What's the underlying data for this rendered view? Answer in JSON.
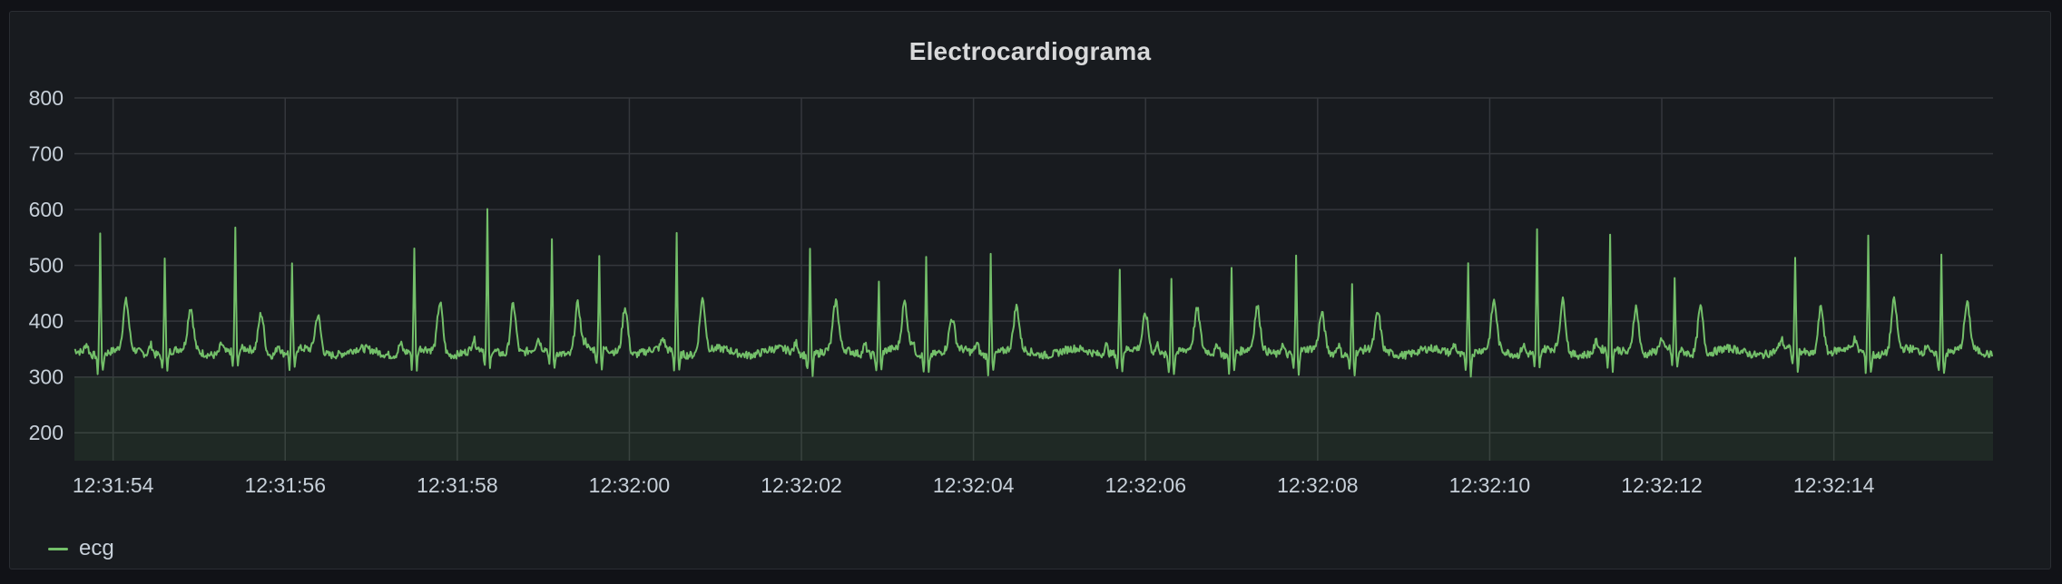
{
  "panel": {
    "title": "Electrocardiograma"
  },
  "legend": {
    "label": "ecg",
    "color": "#73bf69"
  },
  "chart_data": {
    "type": "area",
    "title": "Electrocardiograma",
    "xlabel": "",
    "ylabel": "",
    "ylim": [
      150,
      800
    ],
    "y_ticks": [
      200,
      300,
      400,
      500,
      600,
      700,
      800
    ],
    "x_range": [
      "12:31:53.55",
      "12:32:15.85"
    ],
    "x_ticks": [
      "12:31:54",
      "12:31:56",
      "12:31:58",
      "12:32:00",
      "12:32:02",
      "12:32:04",
      "12:32:06",
      "12:32:08",
      "12:32:10",
      "12:32:12",
      "12:32:14"
    ],
    "grid": true,
    "legend_position": "bottom-left",
    "fill_below": 300,
    "series": [
      {
        "name": "ecg",
        "color": "#73bf69",
        "baseline": 345,
        "beats": [
          {
            "t": "12:31:53.85",
            "r": 560,
            "tw": 430
          },
          {
            "t": "12:31:54.60",
            "r": 520,
            "tw": 420
          },
          {
            "t": "12:31:55.42",
            "r": 560,
            "tw": 415
          },
          {
            "t": "12:31:56.08",
            "r": 495,
            "tw": 410
          },
          {
            "t": "12:31:57.50",
            "r": 530,
            "tw": 435
          },
          {
            "t": "12:31:58.35",
            "r": 590,
            "tw": 435
          },
          {
            "t": "12:31:59.10",
            "r": 545,
            "tw": 435
          },
          {
            "t": "12:31:59.65",
            "r": 515,
            "tw": 430
          },
          {
            "t": "12:32:00.55",
            "r": 560,
            "tw": 440
          },
          {
            "t": "12:32:02.10",
            "r": 530,
            "tw": 430
          },
          {
            "t": "12:32:02.90",
            "r": 470,
            "tw": 430
          },
          {
            "t": "12:32:03.45",
            "r": 520,
            "tw": 400
          },
          {
            "t": "12:32:04.20",
            "r": 530,
            "tw": 420
          },
          {
            "t": "12:32:05.70",
            "r": 495,
            "tw": 410
          },
          {
            "t": "12:32:06.30",
            "r": 480,
            "tw": 415
          },
          {
            "t": "12:32:07.00",
            "r": 505,
            "tw": 420
          },
          {
            "t": "12:32:07.75",
            "r": 515,
            "tw": 410
          },
          {
            "t": "12:32:08.40",
            "r": 470,
            "tw": 410
          },
          {
            "t": "12:32:09.75",
            "r": 515,
            "tw": 430
          },
          {
            "t": "12:32:10.55",
            "r": 560,
            "tw": 435
          },
          {
            "t": "12:32:11.40",
            "r": 545,
            "tw": 430
          },
          {
            "t": "12:32:12.15",
            "r": 470,
            "tw": 430
          },
          {
            "t": "12:32:13.55",
            "r": 515,
            "tw": 430
          },
          {
            "t": "12:32:14.40",
            "r": 560,
            "tw": 435
          },
          {
            "t": "12:32:15.25",
            "r": 525,
            "tw": 425
          }
        ]
      }
    ]
  }
}
